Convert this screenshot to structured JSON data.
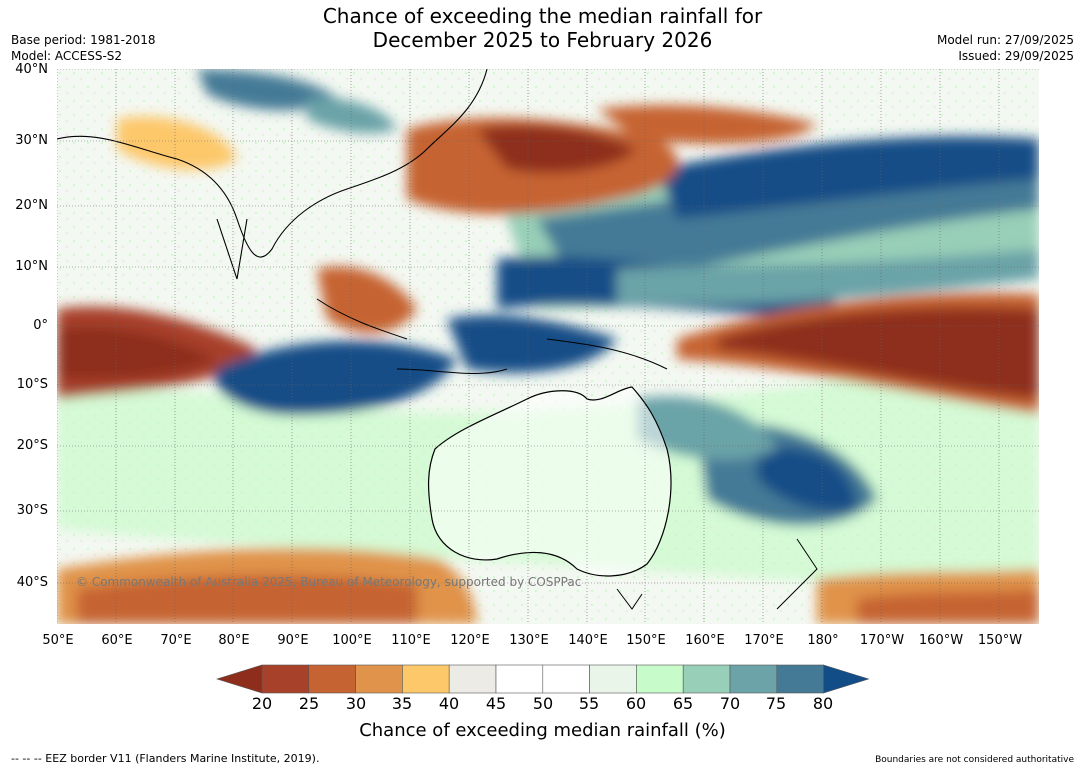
{
  "title_line1": "Chance of exceeding the median rainfall for",
  "title_line2": "December 2025 to February 2026",
  "base_period": "Base period: 1981-2018",
  "model": "Model: ACCESS-S2",
  "model_run": "Model run: 27/09/2025",
  "issued": "Issued: 29/09/2025",
  "lat_labels": [
    "40°N",
    "30°N",
    "20°N",
    "10°N",
    "0°",
    "10°S",
    "20°S",
    "30°S",
    "40°S"
  ],
  "lon_labels": [
    "50°E",
    "60°E",
    "70°E",
    "80°E",
    "90°E",
    "100°E",
    "110°E",
    "120°E",
    "130°E",
    "140°E",
    "150°E",
    "160°E",
    "170°E",
    "180°",
    "170°W",
    "160°W",
    "150°W"
  ],
  "colorbar_ticks": [
    "20",
    "25",
    "30",
    "35",
    "40",
    "45",
    "50",
    "55",
    "60",
    "65",
    "70",
    "75",
    "80"
  ],
  "colorbar_colors": [
    "#8e2d1c",
    "#a8412a",
    "#c66332",
    "#e0934a",
    "#fdc86a",
    "#ecebe6",
    "#ffffff",
    "#ffffff",
    "#eaf5ea",
    "#c7fbc9",
    "#98cfb8",
    "#6ba3a8",
    "#457a96",
    "#134d87"
  ],
  "colorbar_label": "Chance of exceeding median rainfall (%)",
  "copyright": "© Commonwealth of Australia 2025, Bureau of Meteorology, supported by COSPPac",
  "footer_left": "-- -- -- EEZ border V11 (Flanders Marine Institute, 2019).",
  "footer_right": "Boundaries are not considered authoritative"
}
